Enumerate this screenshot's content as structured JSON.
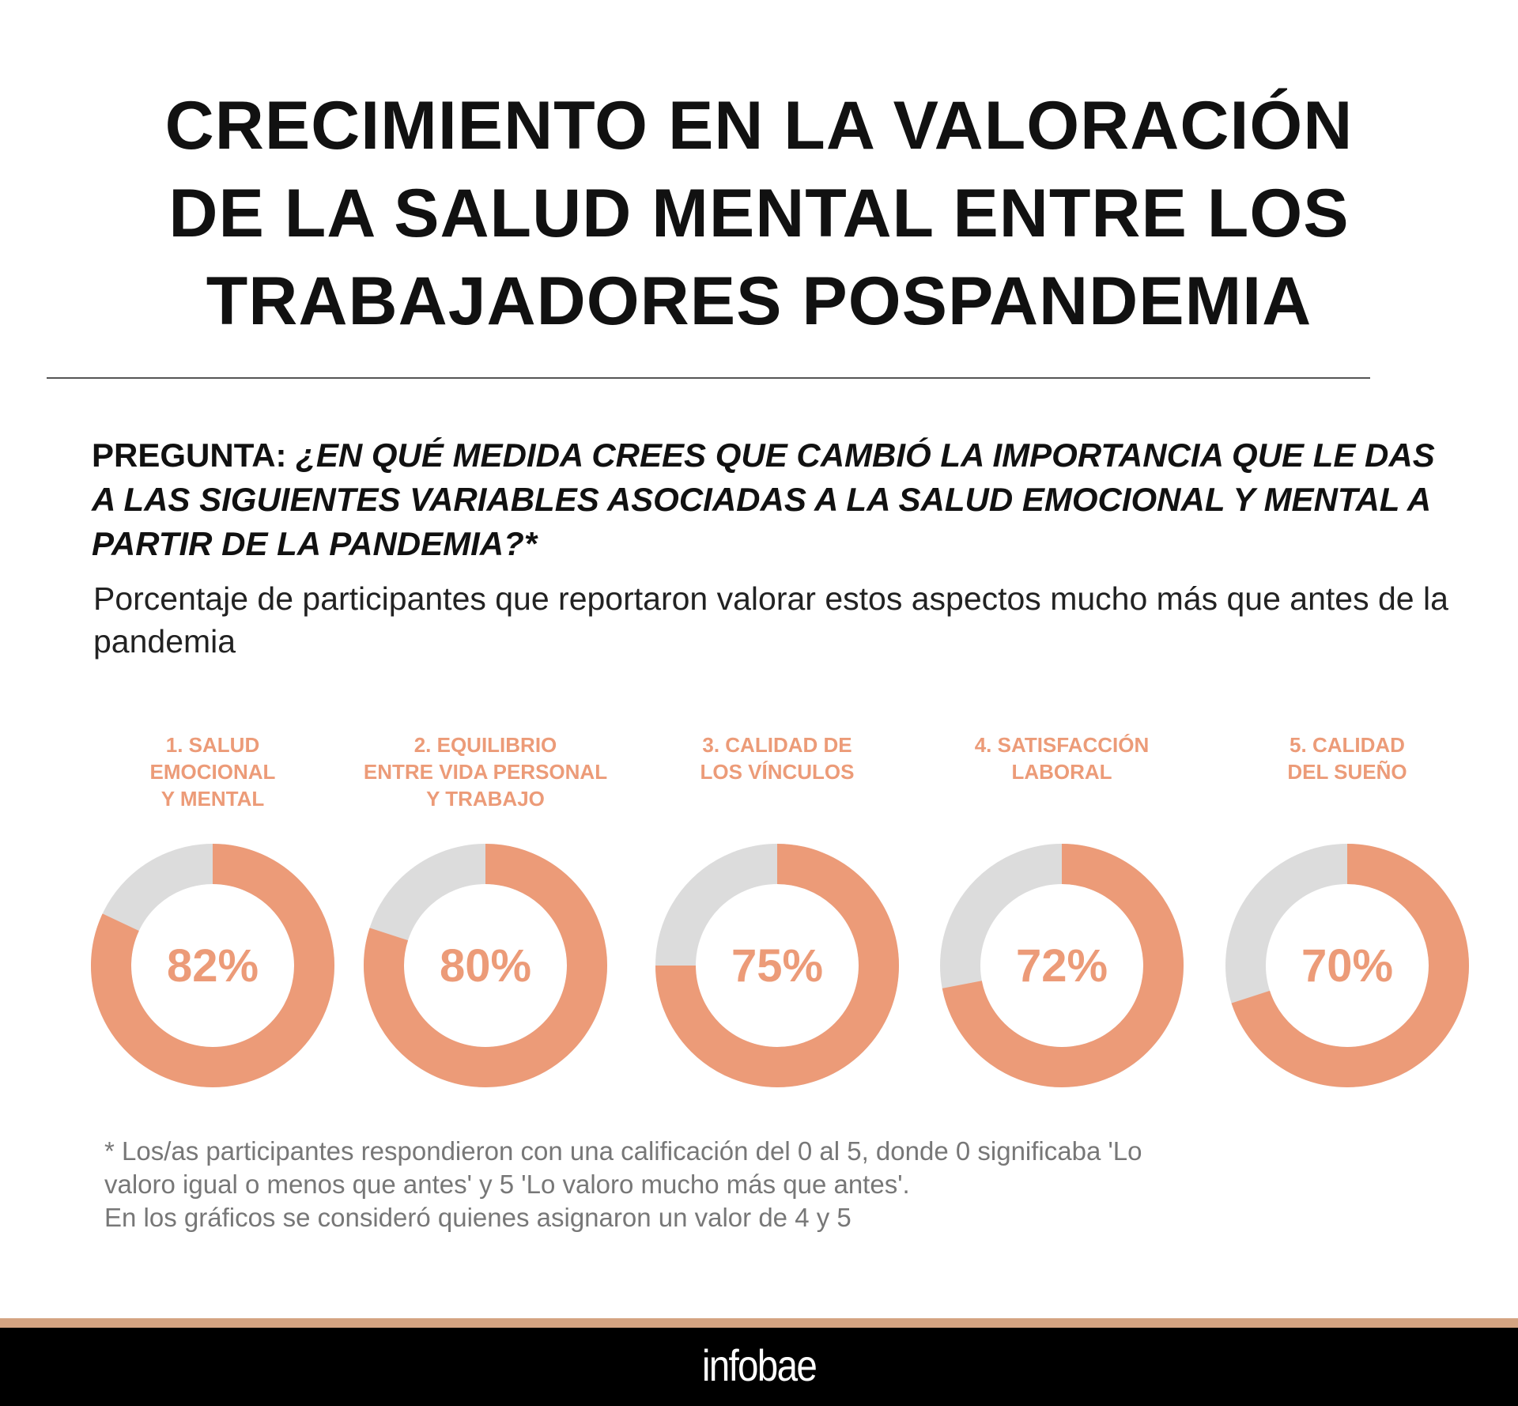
{
  "title": {
    "lines": [
      "CRECIMIENTO EN LA VALORACIÓN",
      "DE LA SALUD MENTAL ENTRE LOS",
      "TRABAJADORES POSPANDEMIA"
    ]
  },
  "question": {
    "label": "PREGUNTA:",
    "text": " ¿EN QUÉ MEDIDA CREES QUE CAMBIÓ LA IMPORTANCIA QUE LE DAS A LAS SIGUIENTES VARIABLES ASOCIADAS A LA SALUD EMOCIONAL Y MENTAL A PARTIR DE LA PANDEMIA?*"
  },
  "subtitle": "Porcentaje de participantes que reportaron valorar estos aspectos mucho más que antes de la pandemia",
  "chart_data": {
    "type": "pie",
    "subtype": "donut",
    "categories": [
      "1. SALUD EMOCIONAL Y MENTAL",
      "2. EQUILIBRIO ENTRE VIDA PERSONAL Y TRABAJO",
      "3. CALIDAD DE LOS VÍNCULOS",
      "4. SATISFACCIÓN LABORAL",
      "5. CALIDAD DEL SUEÑO"
    ],
    "label_lines": [
      [
        "1. SALUD",
        "EMOCIONAL",
        "Y MENTAL"
      ],
      [
        "2. EQUILIBRIO",
        "ENTRE VIDA PERSONAL",
        "Y TRABAJO"
      ],
      [
        "3. CALIDAD DE",
        "LOS VÍNCULOS"
      ],
      [
        "4. SATISFACCIÓN",
        "LABORAL"
      ],
      [
        "5. CALIDAD",
        "DEL SUEÑO"
      ]
    ],
    "values": [
      82,
      80,
      75,
      72,
      70
    ],
    "value_labels": [
      "82%",
      "80%",
      "75%",
      "72%",
      "70%"
    ],
    "unit": "%",
    "colors": {
      "value": "#EC9B78",
      "remainder": "#DCDCDC"
    }
  },
  "footnote": {
    "lines": [
      "* Los/as participantes respondieron con una calificación del 0 al 5, donde 0 significaba 'Lo",
      "valoro igual o menos que antes' y 5 'Lo valoro mucho más que antes'.",
      "En los gráficos se consideró quienes asignaron un valor de 4 y 5"
    ]
  },
  "footer": {
    "logo": "infobae"
  }
}
